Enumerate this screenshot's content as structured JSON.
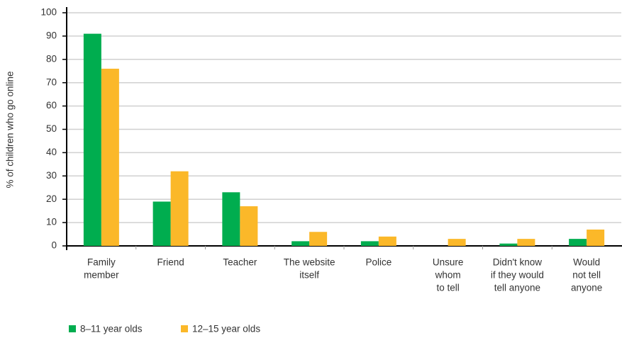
{
  "chart_data": {
    "type": "bar",
    "y_label": "% of children who go online",
    "categories": [
      [
        "Family",
        "member"
      ],
      [
        "Friend"
      ],
      [
        "Teacher"
      ],
      [
        "The website",
        "itself"
      ],
      [
        "Police"
      ],
      [
        "Unsure",
        "whom",
        "to tell"
      ],
      [
        "Didn't know",
        "if they would",
        "tell anyone"
      ],
      [
        "Would",
        "not tell",
        "anyone"
      ]
    ],
    "series": [
      {
        "name": "8–11 year olds",
        "color": "#00ad4f",
        "values": [
          91,
          19,
          23,
          2,
          2,
          0,
          1,
          3
        ]
      },
      {
        "name": "12–15 year olds",
        "color": "#fbb829",
        "values": [
          76,
          32,
          17,
          6,
          4,
          3,
          3,
          7
        ]
      }
    ],
    "ylim": [
      0,
      100
    ],
    "yticks": [
      0,
      10,
      20,
      30,
      40,
      50,
      60,
      70,
      80,
      90,
      100
    ],
    "grid": true
  }
}
